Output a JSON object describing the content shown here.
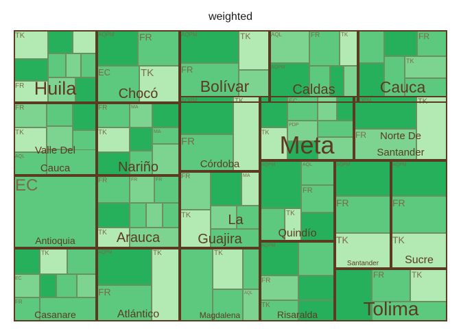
{
  "chart_data": {
    "type": "treemap",
    "title": "weighted",
    "legend": "none",
    "colors": {
      "light": "#b3eab3",
      "mid": "#7dd490",
      "medium": "#5cc97e",
      "dark": "#27b05c",
      "parent_border": "#5b3a22",
      "label": "#5b3a22",
      "sub_label": "#7a6a48"
    },
    "departments": [
      {
        "name": "Huila",
        "tiles": [
          "TK",
          "FR"
        ]
      },
      {
        "name": "Chocó",
        "tiles": [
          "AQPM",
          "FR",
          "EC",
          "TK"
        ]
      },
      {
        "name": "Bolívar",
        "tiles": [
          "AQPM",
          "TK",
          "FR"
        ]
      },
      {
        "name": "Caldas",
        "tiles": [
          "AQL",
          "FR",
          "TK",
          "AQPM"
        ]
      },
      {
        "name": "Cauca",
        "tiles": [
          "FR",
          "TK"
        ]
      },
      {
        "name": "Valle Del Cauca",
        "tiles": [
          "FR",
          "TK",
          "AQL"
        ]
      },
      {
        "name": "Nariño",
        "tiles": [
          "FR",
          "TK",
          "MA"
        ]
      },
      {
        "name": "Córdoba",
        "tiles": [
          "AQPM",
          "TK",
          "FR"
        ]
      },
      {
        "name": "Meta",
        "tiles": [
          "EC",
          "TK",
          "PDP"
        ]
      },
      {
        "name": "Norte De Santander",
        "tiles": [
          "AQPM",
          "TK",
          "FR"
        ]
      },
      {
        "name": "Antioquia",
        "tiles": [
          "EC"
        ]
      },
      {
        "name": "Arauca",
        "tiles": [
          "FR",
          "TK"
        ]
      },
      {
        "name": "La Guajira",
        "tiles": [
          "FR",
          "MA",
          "TK"
        ]
      },
      {
        "name": "Quindío",
        "tiles": [
          "AQPM",
          "AQL",
          "FR",
          "TK"
        ]
      },
      {
        "name": "Santander",
        "tiles": [
          "AQPM",
          "FR",
          "TK"
        ]
      },
      {
        "name": "Sucre",
        "tiles": [
          "AQPM",
          "FR",
          "TK"
        ]
      },
      {
        "name": "Casanare",
        "tiles": [
          "TK",
          "EC",
          "FR"
        ]
      },
      {
        "name": "Atlántico",
        "tiles": [
          "AQPM",
          "TK",
          "FR"
        ]
      },
      {
        "name": "Magdalena",
        "tiles": [
          "TK",
          "AQL"
        ]
      },
      {
        "name": "Risaralda",
        "tiles": [
          "AQPM",
          "FR",
          "TK"
        ]
      },
      {
        "name": "Tolima",
        "tiles": [
          "FR",
          "TK"
        ]
      }
    ]
  }
}
